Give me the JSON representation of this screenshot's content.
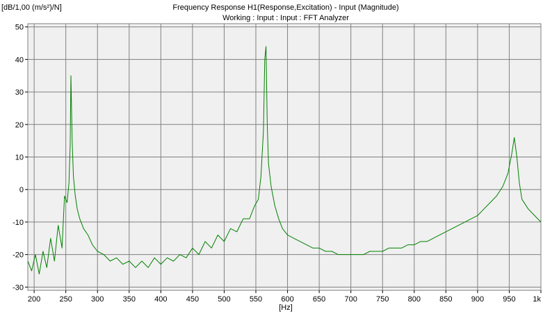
{
  "chart_data": {
    "type": "line",
    "title": "Frequency Response H1(Response,Excitation) - Input (Magnitude)",
    "subtitle": "Working : Input : Input : FFT Analyzer",
    "ylabel": "[dB/1,00 (m/s²)/N]",
    "xlabel": "[Hz]",
    "xlim": [
      190,
      1000
    ],
    "ylim": [
      -31,
      51
    ],
    "x_ticks": [
      200,
      250,
      300,
      350,
      400,
      450,
      500,
      550,
      600,
      650,
      700,
      750,
      800,
      850,
      900,
      950,
      1000
    ],
    "x_tick_labels": [
      "200",
      "250",
      "300",
      "350",
      "400",
      "450",
      "500",
      "550",
      "600",
      "650",
      "700",
      "750",
      "800",
      "850",
      "900",
      "950",
      "1k"
    ],
    "y_ticks": [
      50,
      40,
      30,
      20,
      10,
      0,
      -10,
      -20,
      -30
    ],
    "y_tick_labels": [
      "50",
      "40",
      "30",
      "20",
      "10",
      "0",
      "-10",
      "-20",
      "-30"
    ],
    "grid": true,
    "line_color": "#008000",
    "grid_color": "#808080",
    "plot_background": "#f0f0f0",
    "series": [
      {
        "x": [
          190,
          196,
          202,
          208,
          214,
          220,
          226,
          232,
          238,
          244,
          248,
          252,
          255,
          257,
          258,
          260,
          262,
          265,
          268,
          272,
          278,
          285,
          292,
          300,
          310,
          320,
          330,
          340,
          350,
          360,
          370,
          380,
          390,
          400,
          410,
          420,
          430,
          440,
          450,
          460,
          470,
          480,
          490,
          500,
          510,
          520,
          530,
          540,
          548,
          554,
          558,
          562,
          564,
          566,
          568,
          570,
          574,
          580,
          586,
          592,
          600,
          610,
          620,
          630,
          640,
          650,
          660,
          670,
          680,
          690,
          700,
          710,
          720,
          730,
          740,
          750,
          760,
          770,
          780,
          790,
          800,
          810,
          820,
          830,
          840,
          850,
          860,
          870,
          880,
          890,
          900,
          910,
          920,
          930,
          940,
          948,
          954,
          958,
          962,
          966,
          970,
          980,
          990,
          1000
        ],
        "y": [
          -22,
          -25,
          -20,
          -26,
          -19,
          -24,
          -15,
          -22,
          -11,
          -18,
          -2,
          -4,
          2,
          14,
          35,
          15,
          4,
          -2,
          -6,
          -9,
          -12,
          -14,
          -17,
          -19,
          -20,
          -22,
          -21,
          -23,
          -22,
          -24,
          -22,
          -24,
          -21,
          -23,
          -21,
          -22,
          -20,
          -21,
          -18,
          -20,
          -16,
          -18,
          -14,
          -16,
          -12,
          -13,
          -9,
          -9,
          -5,
          -3,
          4,
          18,
          40,
          44,
          20,
          8,
          1,
          -5,
          -9,
          -12,
          -14,
          -15,
          -16,
          -17,
          -18,
          -18,
          -19,
          -19,
          -20,
          -20,
          -20,
          -20,
          -20,
          -19,
          -19,
          -19,
          -18,
          -18,
          -18,
          -17,
          -17,
          -16,
          -16,
          -15,
          -14,
          -13,
          -12,
          -11,
          -10,
          -9,
          -8,
          -6,
          -4,
          -2,
          1,
          5,
          11,
          16,
          10,
          2,
          -3,
          -6,
          -8,
          -10
        ]
      }
    ]
  }
}
